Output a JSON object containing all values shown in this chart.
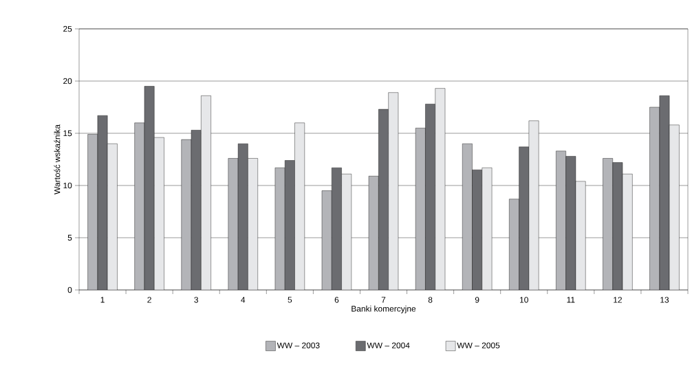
{
  "chart_data": {
    "type": "bar",
    "xlabel": "Banki komercyjne",
    "ylabel": "Wartość wskaźnika",
    "categories": [
      "1",
      "2",
      "3",
      "4",
      "5",
      "6",
      "7",
      "8",
      "9",
      "10",
      "11",
      "12",
      "13"
    ],
    "series": [
      {
        "name": "WW – 2003",
        "color": "#b3b4b8",
        "values": [
          14.9,
          16.0,
          14.4,
          12.6,
          11.7,
          9.5,
          10.9,
          15.5,
          14.0,
          8.7,
          13.3,
          12.6,
          17.5
        ]
      },
      {
        "name": "WW – 2004",
        "color": "#6b6c70",
        "values": [
          16.7,
          19.5,
          15.3,
          14.0,
          12.4,
          11.7,
          17.3,
          17.8,
          11.5,
          13.7,
          12.8,
          12.2,
          18.6
        ]
      },
      {
        "name": "WW – 2005",
        "color": "#e6e7e9",
        "values": [
          14.0,
          14.6,
          18.6,
          12.6,
          16.0,
          11.1,
          18.9,
          19.3,
          11.7,
          16.2,
          10.4,
          11.1,
          15.8
        ]
      }
    ],
    "ylim": [
      0,
      25
    ],
    "yticks": [
      0,
      5,
      10,
      15,
      20,
      25
    ],
    "grid": "y",
    "legend": "bottom"
  }
}
